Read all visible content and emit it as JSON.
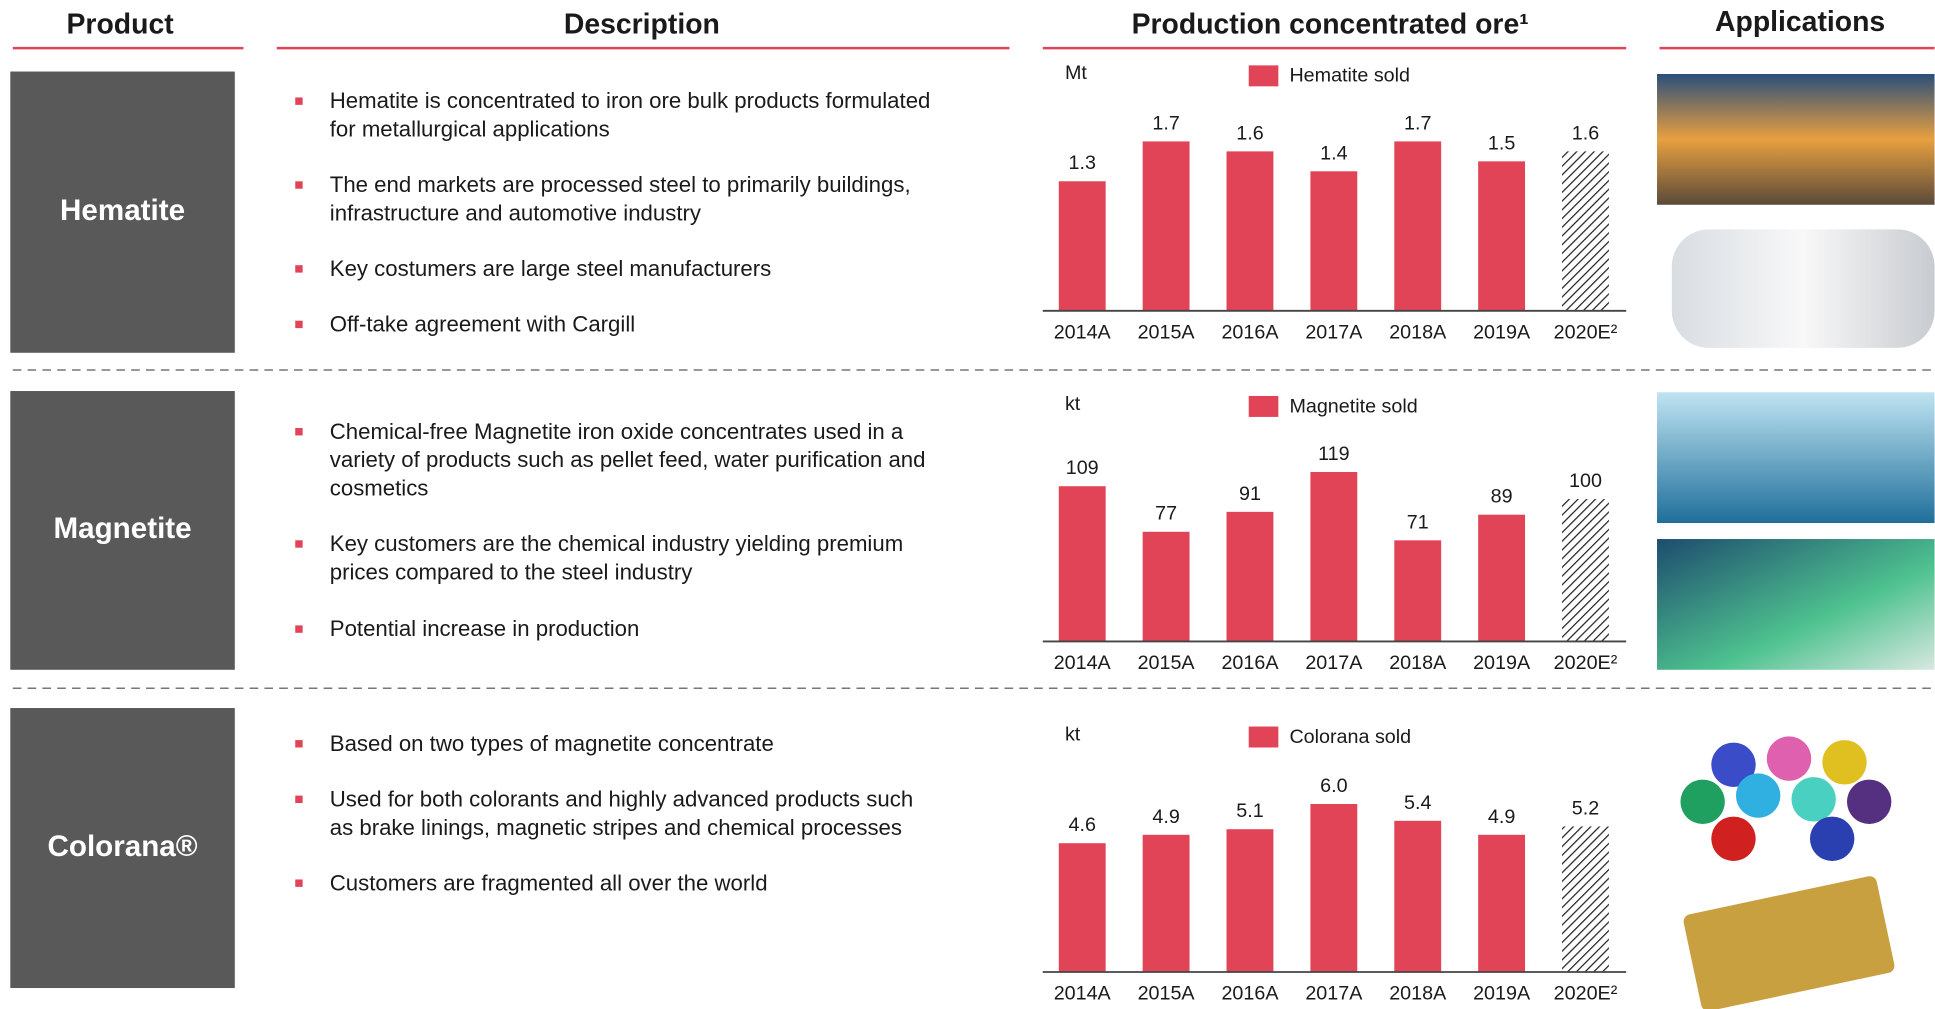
{
  "headers": {
    "product": "Product",
    "description": "Description",
    "production": "Production concentrated ore¹",
    "applications": "Applications"
  },
  "rows": [
    {
      "product": "Hematite",
      "bullets": [
        [
          "Hematite is concentrated to iron ore bulk products formulated",
          "for metallurgical applications"
        ],
        [
          "The end markets are processed steel to primarily buildings,",
          "infrastructure and automotive industry"
        ],
        [
          "Key costumers are large steel manufacturers"
        ],
        [
          "Off-take agreement with Cargill"
        ]
      ]
    },
    {
      "product": "Magnetite",
      "bullets": [
        [
          "Chemical-free Magnetite iron oxide concentrates used in a",
          "variety of products such as pellet feed, water purification and",
          "cosmetics"
        ],
        [
          "Key customers are the chemical industry yielding premium",
          "prices compared to the steel industry"
        ],
        [
          "Potential increase in production"
        ]
      ]
    },
    {
      "product": "Colorana®",
      "bullets": [
        [
          "Based on two types of magnetite concentrate"
        ],
        [
          "Used for both colorants and highly advanced products such",
          "as brake linings, magnetic stripes and chemical processes"
        ],
        [
          "Customers are fragmented all over the world"
        ]
      ]
    }
  ],
  "chart_data": [
    {
      "type": "bar",
      "unit": "Mt",
      "categories": [
        "2014A",
        "2015A",
        "2016A",
        "2017A",
        "2018A",
        "2019A",
        "2020E²"
      ],
      "series": [
        {
          "name": "Hematite sold",
          "color": "#e04456",
          "values": [
            1.3,
            1.7,
            1.6,
            1.4,
            1.7,
            1.5,
            1.6
          ]
        }
      ],
      "hatched": [
        false,
        false,
        false,
        false,
        false,
        false,
        true
      ],
      "ylim": [
        0,
        2.5
      ]
    },
    {
      "type": "bar",
      "unit": "kt",
      "categories": [
        "2014A",
        "2015A",
        "2016A",
        "2017A",
        "2018A",
        "2019A",
        "2020E²"
      ],
      "series": [
        {
          "name": "Magnetite sold",
          "color": "#e04456",
          "values": [
            109,
            77,
            91,
            119,
            71,
            89,
            100
          ]
        }
      ],
      "hatched": [
        false,
        false,
        false,
        false,
        false,
        false,
        true
      ],
      "ylim": [
        0,
        175
      ]
    },
    {
      "type": "bar",
      "unit": "kt",
      "categories": [
        "2014A",
        "2015A",
        "2016A",
        "2017A",
        "2018A",
        "2019A",
        "2020E²"
      ],
      "series": [
        {
          "name": "Colorana sold",
          "color": "#e04456",
          "values": [
            4.6,
            4.9,
            5.1,
            6.0,
            5.4,
            4.9,
            5.2
          ],
          "value_labels": [
            "4.6",
            "4.9",
            "5.1",
            "6.0",
            "5.4",
            "4.9",
            "5.2"
          ]
        }
      ],
      "hatched": [
        false,
        false,
        false,
        false,
        false,
        false,
        true
      ],
      "ylim": [
        0,
        8.9
      ]
    }
  ]
}
